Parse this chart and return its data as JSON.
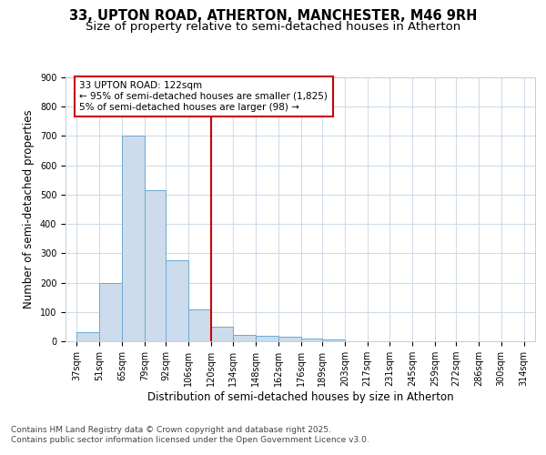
{
  "title_line1": "33, UPTON ROAD, ATHERTON, MANCHESTER, M46 9RH",
  "title_line2": "Size of property relative to semi-detached houses in Atherton",
  "xlabel": "Distribution of semi-detached houses by size in Atherton",
  "ylabel": "Number of semi-detached properties",
  "footer_line1": "Contains HM Land Registry data © Crown copyright and database right 2025.",
  "footer_line2": "Contains public sector information licensed under the Open Government Licence v3.0.",
  "annotation_line1": "33 UPTON ROAD: 122sqm",
  "annotation_line2": "← 95% of semi-detached houses are smaller (1,825)",
  "annotation_line3": "5% of semi-detached houses are larger (98) →",
  "bar_left_edges": [
    37,
    51,
    65,
    79,
    92,
    106,
    120,
    134,
    148,
    162,
    176,
    189,
    203,
    217,
    231,
    245,
    259,
    272,
    286,
    300
  ],
  "bar_heights": [
    30,
    200,
    700,
    515,
    275,
    110,
    50,
    22,
    20,
    15,
    8,
    5,
    0,
    0,
    0,
    0,
    0,
    0,
    0,
    0
  ],
  "bar_widths": [
    14,
    14,
    14,
    13,
    14,
    14,
    14,
    14,
    14,
    14,
    13,
    14,
    14,
    14,
    14,
    14,
    13,
    14,
    14,
    14
  ],
  "tick_labels": [
    "37sqm",
    "51sqm",
    "65sqm",
    "79sqm",
    "92sqm",
    "106sqm",
    "120sqm",
    "134sqm",
    "148sqm",
    "162sqm",
    "176sqm",
    "189sqm",
    "203sqm",
    "217sqm",
    "231sqm",
    "245sqm",
    "259sqm",
    "272sqm",
    "286sqm",
    "300sqm",
    "314sqm"
  ],
  "tick_positions": [
    37,
    51,
    65,
    79,
    92,
    106,
    120,
    134,
    148,
    162,
    176,
    189,
    203,
    217,
    231,
    245,
    259,
    272,
    286,
    300,
    314
  ],
  "bar_color": "#ccdcec",
  "bar_edge_color": "#6aaad4",
  "vline_color": "#cc0000",
  "vline_x": 120,
  "ylim": [
    0,
    900
  ],
  "xlim": [
    30,
    321
  ],
  "background_color": "#ffffff",
  "plot_bg_color": "#ffffff",
  "grid_color": "#d0dce8",
  "annotation_box_color": "#ffffff",
  "annotation_box_edge": "#cc0000",
  "title_fontsize": 10.5,
  "subtitle_fontsize": 9.5,
  "axis_label_fontsize": 8.5,
  "tick_fontsize": 7,
  "annotation_fontsize": 7.5,
  "footer_fontsize": 6.5
}
